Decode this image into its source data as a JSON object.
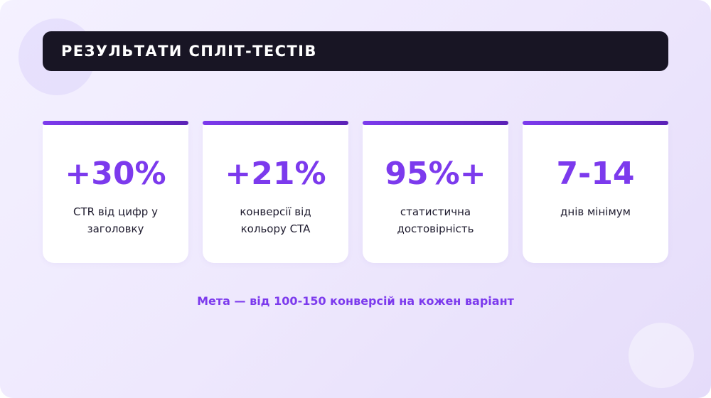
{
  "header": {
    "title": "РЕЗУЛЬТАТИ СПЛІТ-ТЕСТІВ"
  },
  "stats": [
    {
      "value": "+30%",
      "description": "CTR від цифр у заголовку"
    },
    {
      "value": "+21%",
      "description": "конверсії від кольору CTA"
    },
    {
      "value": "95%+",
      "description": "статистична достовірність"
    },
    {
      "value": "7-14",
      "description": "днів мінімум"
    }
  ],
  "footer": {
    "note": "Мета — від 100-150 конверсій на кожен варіант"
  },
  "colors": {
    "accent": "#7c3aed",
    "header_background": "#181524",
    "card_background": "#ffffff"
  }
}
